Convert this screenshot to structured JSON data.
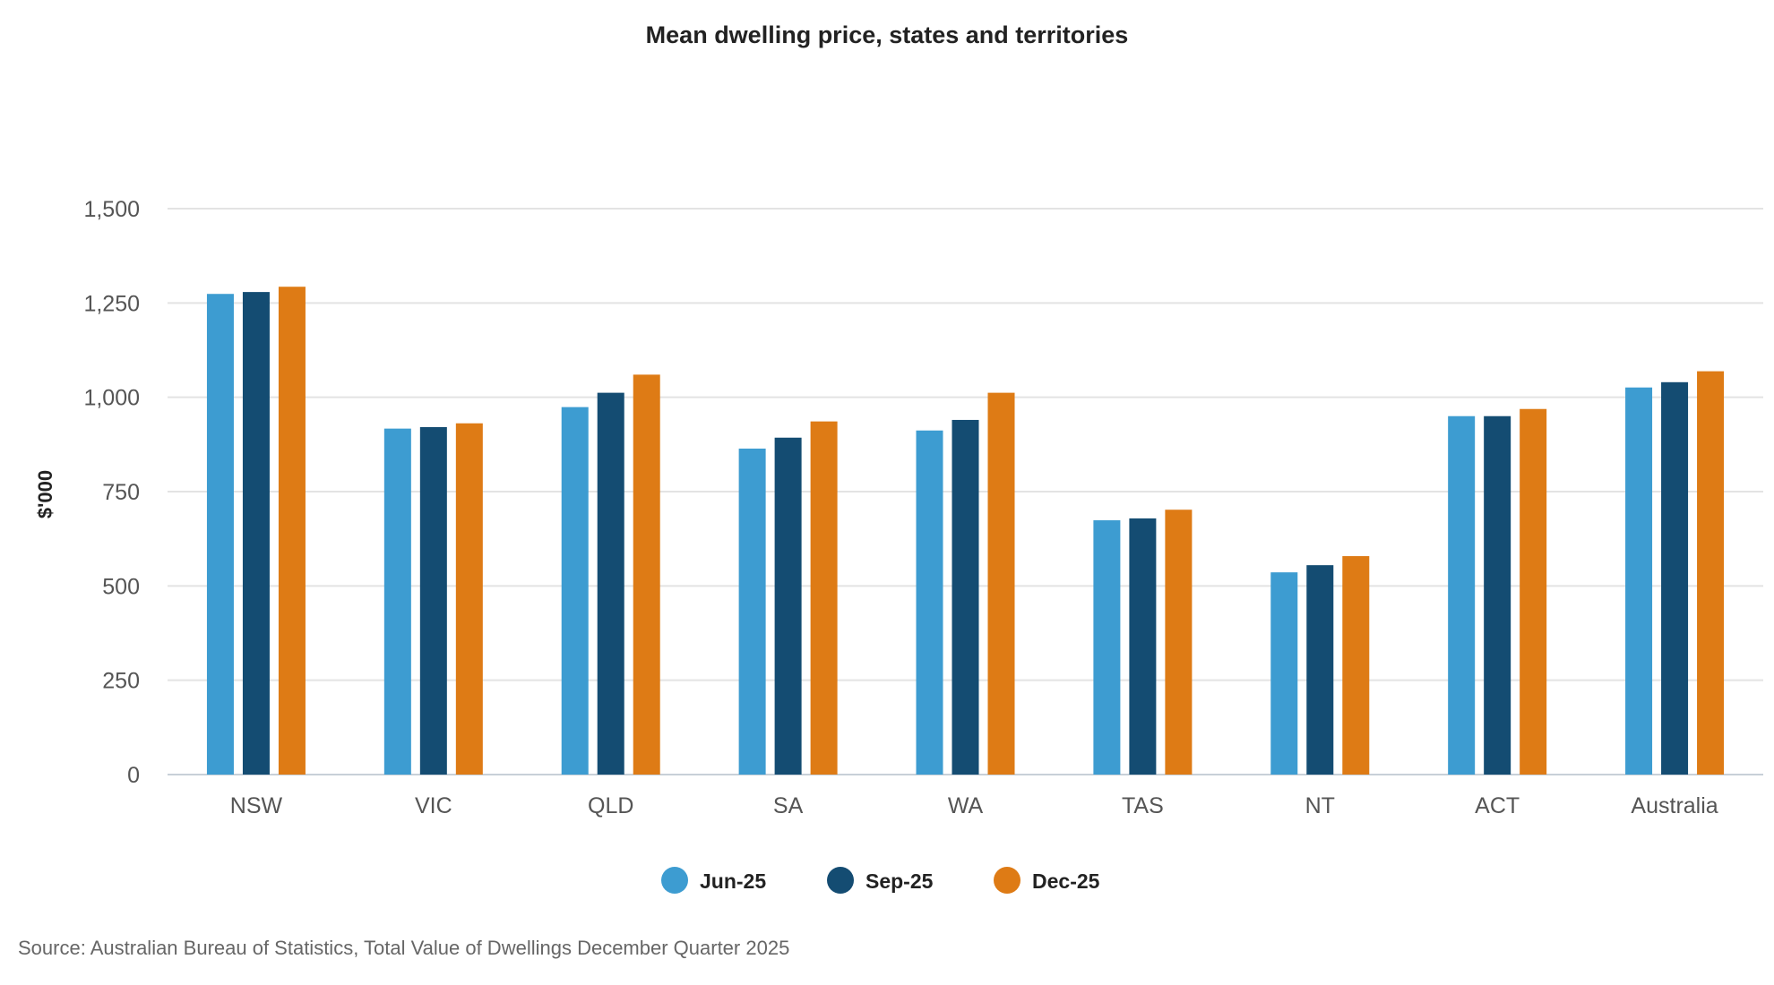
{
  "chart_data": {
    "type": "bar",
    "title": "Mean dwelling price, states and territories",
    "xlabel": "",
    "ylabel": "$'000",
    "ylim": [
      0,
      1500
    ],
    "yticks": [
      0,
      250,
      500,
      750,
      1000,
      1250,
      1500
    ],
    "ytick_labels": [
      "0",
      "250",
      "500",
      "750",
      "1,000",
      "1,250",
      "1,500"
    ],
    "grid": true,
    "legend_position": "bottom-center",
    "categories": [
      "NSW",
      "VIC",
      "QLD",
      "SA",
      "WA",
      "TAS",
      "NT",
      "ACT",
      "Australia"
    ],
    "series": [
      {
        "name": "Jun-25",
        "color": "#3d9cd1",
        "values": [
          1274,
          917,
          974,
          864,
          912,
          674,
          536,
          950,
          1026
        ]
      },
      {
        "name": "Sep-25",
        "color": "#144c72",
        "values": [
          1279,
          921,
          1012,
          893,
          940,
          679,
          555,
          950,
          1040
        ]
      },
      {
        "name": "Dec-25",
        "color": "#de7b15",
        "values": [
          1293,
          931,
          1060,
          936,
          1012,
          702,
          579,
          969,
          1069
        ]
      }
    ],
    "source": "Source: Australian Bureau of Statistics, Total Value of Dwellings December Quarter 2025"
  }
}
